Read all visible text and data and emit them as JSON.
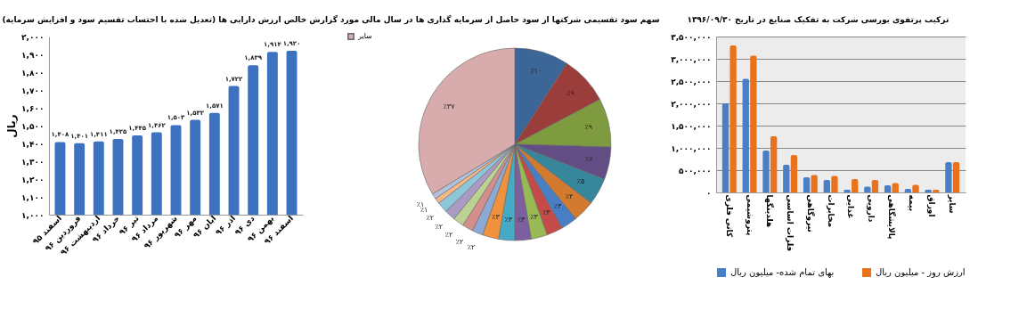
{
  "chart_data": [
    {
      "type": "bar",
      "title": "خالص ارزش دارایی ها (تعدیل شده با احتساب تقسیم سود و افزایش سرمایه)",
      "ylabel": "ریال",
      "categories": [
        "اسفند ۹۵",
        "فروردین ۹۶",
        "اردیبهشت ۹۶",
        "خرداد ۹۶",
        "تیر ۹۶",
        "مرداد ۹۶",
        "شهریور ۹۶",
        "مهر ۹۶",
        "آبان ۹۶",
        "آذر ۹۶",
        "دی ۹۶",
        "بهمن ۹۶",
        "اسفند ۹۶"
      ],
      "values": [
        1408,
        1401,
        1411,
        1425,
        1445,
        1462,
        1503,
        1532,
        1571,
        1722,
        1839,
        1914,
        1920
      ],
      "value_labels": [
        "۱,۴۰۸",
        "۱,۴۰۱",
        "۱,۴۱۱",
        "۱,۴۲۵",
        "۱,۴۴۵",
        "۱,۴۶۲",
        "۱,۵۰۳",
        "۱,۵۳۲",
        "۱,۵۷۱",
        "۱,۷۲۲",
        "۱,۸۳۹",
        "۱,۹۱۴",
        "۱,۹۲۰"
      ],
      "color": "#3d72c0",
      "ylim": [
        1000,
        2000
      ],
      "yticks": [
        {
          "value": 1000,
          "label": "۱,۰۰۰"
        },
        {
          "value": 1100,
          "label": "۱,۱۰۰"
        },
        {
          "value": 1200,
          "label": "۱,۲۰۰"
        },
        {
          "value": 1300,
          "label": "۱,۳۰۰"
        },
        {
          "value": 1400,
          "label": "۱,۴۰۰"
        },
        {
          "value": 1500,
          "label": "۱,۵۰۰"
        },
        {
          "value": 1600,
          "label": "۱,۶۰۰"
        },
        {
          "value": 1700,
          "label": "۱,۷۰۰"
        },
        {
          "value": 1800,
          "label": "۱,۸۰۰"
        },
        {
          "value": 1900,
          "label": "۱,۹۰۰"
        },
        {
          "value": 2000,
          "label": "۲,۰۰۰"
        }
      ]
    },
    {
      "type": "pie",
      "title": "سهم سود تقسیمی شرکتها از سود حاصل از سرمایه گذاری ها در سال مالی مورد گزارش",
      "categories": [
        null,
        null,
        null,
        null,
        null,
        null,
        null,
        null,
        null,
        null,
        null,
        null,
        null,
        null,
        null,
        null,
        null,
        null,
        null,
        "سایر"
      ],
      "values": [
        10,
        9,
        9,
        6,
        5,
        4,
        3,
        3,
        3,
        3,
        3,
        3,
        2,
        2,
        2,
        2,
        2,
        1,
        1,
        37
      ],
      "value_labels": [
        "٪۱۰",
        "٪۹",
        "٪۹",
        "٪۶",
        "٪۵",
        "٪۴",
        "٪۳",
        "٪۳",
        "٪۳",
        "٪۳",
        "٪۳",
        "٪۳",
        "٪۲",
        "٪۲",
        "٪۲",
        "٪۲",
        "٪۲",
        "٪۱",
        "٪۱",
        "٪۳۷"
      ],
      "colors": [
        "#3c6598",
        "#9b3d3b",
        "#7e9c3f",
        "#634d85",
        "#37879c",
        "#d27a2f",
        "#4a7ec4",
        "#c44b48",
        "#98b954",
        "#7d5fa0",
        "#47aac4",
        "#f0913d",
        "#8ea9d4",
        "#d48f8d",
        "#bcd293",
        "#ab9ac4",
        "#8cc6d8",
        "#f6b885",
        "#b3c3dc",
        "#d8acad"
      ],
      "legend": "left"
    },
    {
      "type": "bar",
      "title": "ترکیب پرتفوی بورسی شرکت به تفکیک صنایع در تاریخ ۱۳۹۶/۰۹/۳۰",
      "categories": [
        "کانی فلزی",
        "پتروشیمی",
        "هلدینگها",
        "فلزات اساسی",
        "نیروگاهی",
        "مخابرات",
        "غذایی",
        "دارویی",
        "پالایشگاهی",
        "بیمه",
        "اوراق",
        "سایر"
      ],
      "series": [
        {
          "name": "بهای تمام شده- میلیون ریال",
          "color": "#4a7fc8",
          "values": [
            2000000,
            2550000,
            940000,
            620000,
            340000,
            280000,
            60000,
            130000,
            160000,
            80000,
            60000,
            680000
          ]
        },
        {
          "name": "ارزش روز - میلیون ریال",
          "color": "#e8731c",
          "values": [
            3300000,
            3070000,
            1260000,
            840000,
            390000,
            370000,
            300000,
            280000,
            210000,
            170000,
            60000,
            680000
          ]
        }
      ],
      "ylim": [
        0,
        3500000
      ],
      "yticks": [
        {
          "value": 0,
          "label": "۰"
        },
        {
          "value": 500000,
          "label": "۵۰۰,۰۰۰"
        },
        {
          "value": 1000000,
          "label": "۱,۰۰۰,۰۰۰"
        },
        {
          "value": 1500000,
          "label": "۱,۵۰۰,۰۰۰"
        },
        {
          "value": 2000000,
          "label": "۲,۰۰۰,۰۰۰"
        },
        {
          "value": 2500000,
          "label": "۲,۵۰۰,۰۰۰"
        },
        {
          "value": 3000000,
          "label": "۳,۰۰۰,۰۰۰"
        },
        {
          "value": 3500000,
          "label": "۳,۵۰۰,۰۰۰"
        }
      ],
      "grid": "y",
      "legend": "bottom"
    }
  ]
}
